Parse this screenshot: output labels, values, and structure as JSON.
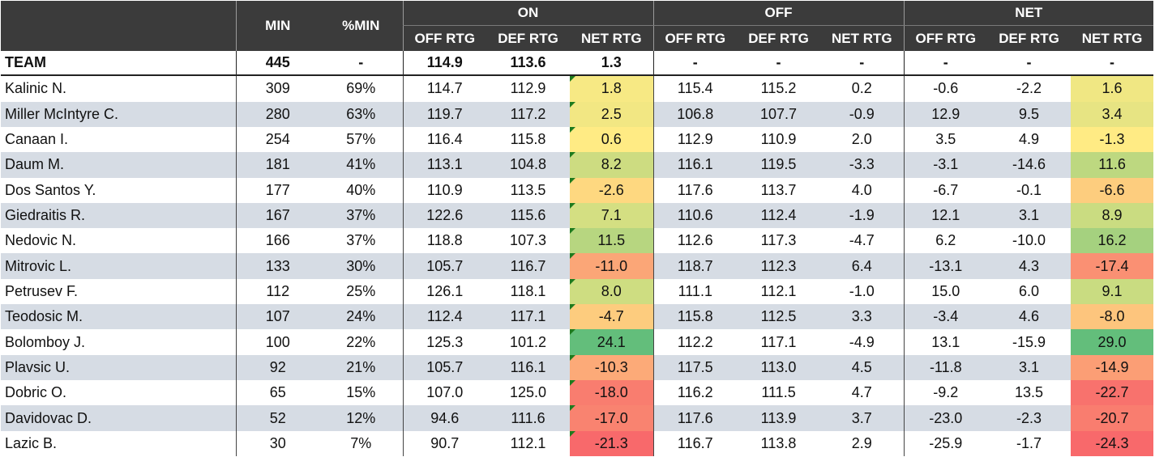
{
  "header": {
    "min": "MIN",
    "pct_min": "%MIN",
    "groups": [
      "ON",
      "OFF",
      "NET"
    ],
    "sub": [
      "OFF RTG",
      "DEF RTG",
      "NET RTG"
    ]
  },
  "colors": {
    "header_bg": "#3b3b3b",
    "row_alt": "#d6dce4",
    "heat_red": "#f8696b",
    "heat_yellow": "#ffeb84",
    "heat_green": "#63be7b"
  },
  "team": {
    "name": "TEAM",
    "min": "445",
    "pct_min": "-",
    "on": [
      "114.9",
      "113.6",
      "1.3"
    ],
    "off": [
      "-",
      "-",
      "-"
    ],
    "net": [
      "-",
      "-",
      "-"
    ]
  },
  "rows": [
    {
      "name": "Kalinic N.",
      "min": "309",
      "pct_min": "69%",
      "on": [
        "114.7",
        "112.9",
        "1.8"
      ],
      "off": [
        "115.4",
        "115.2",
        "0.2"
      ],
      "net": [
        "-0.6",
        "-2.2",
        "1.6"
      ]
    },
    {
      "name": "Miller McIntyre C.",
      "min": "280",
      "pct_min": "63%",
      "on": [
        "119.7",
        "117.2",
        "2.5"
      ],
      "off": [
        "106.8",
        "107.7",
        "-0.9"
      ],
      "net": [
        "12.9",
        "9.5",
        "3.4"
      ]
    },
    {
      "name": "Canaan I.",
      "min": "254",
      "pct_min": "57%",
      "on": [
        "116.4",
        "115.8",
        "0.6"
      ],
      "off": [
        "112.9",
        "110.9",
        "2.0"
      ],
      "net": [
        "3.5",
        "4.9",
        "-1.3"
      ]
    },
    {
      "name": "Daum M.",
      "min": "181",
      "pct_min": "41%",
      "on": [
        "113.1",
        "104.8",
        "8.2"
      ],
      "off": [
        "116.1",
        "119.5",
        "-3.3"
      ],
      "net": [
        "-3.1",
        "-14.6",
        "11.6"
      ]
    },
    {
      "name": "Dos Santos Y.",
      "min": "177",
      "pct_min": "40%",
      "on": [
        "110.9",
        "113.5",
        "-2.6"
      ],
      "off": [
        "117.6",
        "113.7",
        "4.0"
      ],
      "net": [
        "-6.7",
        "-0.1",
        "-6.6"
      ]
    },
    {
      "name": "Giedraitis R.",
      "min": "167",
      "pct_min": "37%",
      "on": [
        "122.6",
        "115.6",
        "7.1"
      ],
      "off": [
        "110.6",
        "112.4",
        "-1.9"
      ],
      "net": [
        "12.1",
        "3.1",
        "8.9"
      ]
    },
    {
      "name": "Nedovic N.",
      "min": "166",
      "pct_min": "37%",
      "on": [
        "118.8",
        "107.3",
        "11.5"
      ],
      "off": [
        "112.6",
        "117.3",
        "-4.7"
      ],
      "net": [
        "6.2",
        "-10.0",
        "16.2"
      ]
    },
    {
      "name": "Mitrovic L.",
      "min": "133",
      "pct_min": "30%",
      "on": [
        "105.7",
        "116.7",
        "-11.0"
      ],
      "off": [
        "118.7",
        "112.3",
        "6.4"
      ],
      "net": [
        "-13.1",
        "4.3",
        "-17.4"
      ]
    },
    {
      "name": "Petrusev F.",
      "min": "112",
      "pct_min": "25%",
      "on": [
        "126.1",
        "118.1",
        "8.0"
      ],
      "off": [
        "111.1",
        "112.1",
        "-1.0"
      ],
      "net": [
        "15.0",
        "6.0",
        "9.1"
      ]
    },
    {
      "name": "Teodosic M.",
      "min": "107",
      "pct_min": "24%",
      "on": [
        "112.4",
        "117.1",
        "-4.7"
      ],
      "off": [
        "115.8",
        "112.5",
        "3.3"
      ],
      "net": [
        "-3.4",
        "4.6",
        "-8.0"
      ]
    },
    {
      "name": "Bolomboy J.",
      "min": "100",
      "pct_min": "22%",
      "on": [
        "125.3",
        "101.2",
        "24.1"
      ],
      "off": [
        "112.2",
        "117.1",
        "-4.9"
      ],
      "net": [
        "13.1",
        "-15.9",
        "29.0"
      ]
    },
    {
      "name": "Plavsic U.",
      "min": "92",
      "pct_min": "21%",
      "on": [
        "105.7",
        "116.1",
        "-10.3"
      ],
      "off": [
        "117.5",
        "113.0",
        "4.5"
      ],
      "net": [
        "-11.8",
        "3.1",
        "-14.9"
      ]
    },
    {
      "name": "Dobric O.",
      "min": "65",
      "pct_min": "15%",
      "on": [
        "107.0",
        "125.0",
        "-18.0"
      ],
      "off": [
        "116.2",
        "111.5",
        "4.7"
      ],
      "net": [
        "-9.2",
        "13.5",
        "-22.7"
      ]
    },
    {
      "name": "Davidovac D.",
      "min": "52",
      "pct_min": "12%",
      "on": [
        "94.6",
        "111.6",
        "-17.0"
      ],
      "off": [
        "117.6",
        "113.9",
        "3.7"
      ],
      "net": [
        "-23.0",
        "-2.3",
        "-20.7"
      ]
    },
    {
      "name": "Lazic B.",
      "min": "30",
      "pct_min": "7%",
      "on": [
        "90.7",
        "112.1",
        "-21.3"
      ],
      "off": [
        "116.7",
        "113.8",
        "2.9"
      ],
      "net": [
        "-25.9",
        "-1.7",
        "-24.3"
      ]
    }
  ]
}
